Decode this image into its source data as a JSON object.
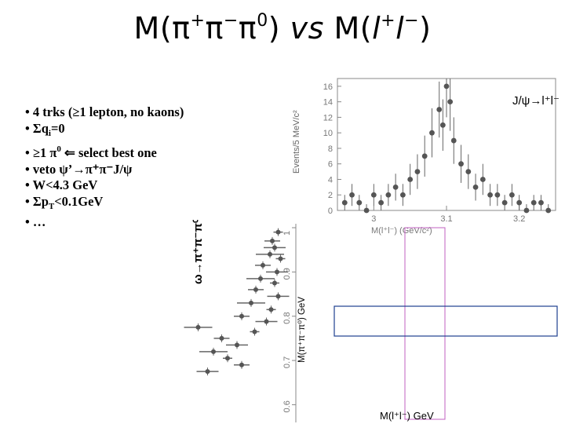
{
  "title": {
    "prefix": "M(π",
    "plus": "+",
    "mid": "π",
    "minus": "−",
    "mid2": "π",
    "zero": "0",
    "close": ")",
    "vs": " vs ",
    "mleft": "M(",
    "l1": "l",
    "l2": "l",
    "end": ")"
  },
  "bullets": [
    {
      "text": "• 4 trks (≥1 lepton, no kaons)"
    },
    {
      "pre": "• Σq",
      "sub": "i",
      "post": "=0"
    },
    {
      "pre": "• ≥1 π",
      "sup": "0",
      "post": "  ⇐ select best one"
    },
    {
      "text": "• veto ψ’→π⁺π⁻J/ψ"
    },
    {
      "text": "• W<4.3 GeV"
    },
    {
      "pre": "• Σp",
      "sub": "T",
      "post": "<0.1GeV"
    },
    {
      "text": "• …"
    }
  ],
  "colors": {
    "box_blue": "#1f3f8f",
    "box_pink": "#c060c0",
    "marker": "#555555"
  },
  "chart_data": [
    {
      "type": "scatter",
      "title": "J/ψ→l⁺l⁻",
      "xlabel": "M(l⁺l⁻) (GeV/c²)",
      "ylabel": "Events/5 MeV/c²",
      "x_ticks": [
        "3",
        "3.1",
        "3.2"
      ],
      "y_ticks": [
        "0",
        "2",
        "4",
        "6",
        "8",
        "10",
        "12",
        "14",
        "16"
      ],
      "xlim": [
        2.95,
        3.25
      ],
      "ylim": [
        0,
        17
      ],
      "x": [
        2.96,
        2.97,
        2.98,
        2.99,
        3.0,
        3.01,
        3.02,
        3.03,
        3.04,
        3.05,
        3.06,
        3.07,
        3.08,
        3.09,
        3.095,
        3.1,
        3.105,
        3.11,
        3.12,
        3.13,
        3.14,
        3.15,
        3.16,
        3.17,
        3.18,
        3.19,
        3.2,
        3.21,
        3.22,
        3.23,
        3.24
      ],
      "y": [
        1,
        2,
        1,
        0,
        2,
        1,
        2,
        3,
        2,
        4,
        5,
        7,
        10,
        13,
        11,
        16,
        14,
        9,
        6,
        5,
        3,
        4,
        2,
        2,
        1,
        2,
        1,
        0,
        1,
        1,
        0
      ]
    },
    {
      "type": "scatter",
      "title": "ω→π⁺π⁻π⁰",
      "xlabel": "",
      "ylabel": "M(π⁺π⁻π⁰) GeV",
      "y_ticks": [
        "0.6",
        "0.7",
        "0.8",
        "0.9",
        "1"
      ],
      "ylim": [
        0.56,
        1.0
      ],
      "points": [
        {
          "y": 0.99,
          "x": 0.93
        },
        {
          "y": 0.97,
          "x": 0.88
        },
        {
          "y": 0.955,
          "x": 0.9
        },
        {
          "y": 0.94,
          "x": 0.86
        },
        {
          "y": 0.93,
          "x": 0.95
        },
        {
          "y": 0.915,
          "x": 0.8
        },
        {
          "y": 0.9,
          "x": 0.92
        },
        {
          "y": 0.885,
          "x": 0.78
        },
        {
          "y": 0.875,
          "x": 0.9
        },
        {
          "y": 0.86,
          "x": 0.74
        },
        {
          "y": 0.845,
          "x": 0.93
        },
        {
          "y": 0.83,
          "x": 0.7
        },
        {
          "y": 0.815,
          "x": 0.87
        },
        {
          "y": 0.8,
          "x": 0.62
        },
        {
          "y": 0.788,
          "x": 0.83
        },
        {
          "y": 0.775,
          "x": 0.25
        },
        {
          "y": 0.765,
          "x": 0.73
        },
        {
          "y": 0.75,
          "x": 0.45
        },
        {
          "y": 0.735,
          "x": 0.58
        },
        {
          "y": 0.72,
          "x": 0.38
        },
        {
          "y": 0.705,
          "x": 0.5
        },
        {
          "y": 0.69,
          "x": 0.62
        },
        {
          "y": 0.675,
          "x": 0.33
        }
      ],
      "y_at_box": 0.78
    }
  ],
  "bottom_xlabel": "M(l⁺l⁻) GeV"
}
